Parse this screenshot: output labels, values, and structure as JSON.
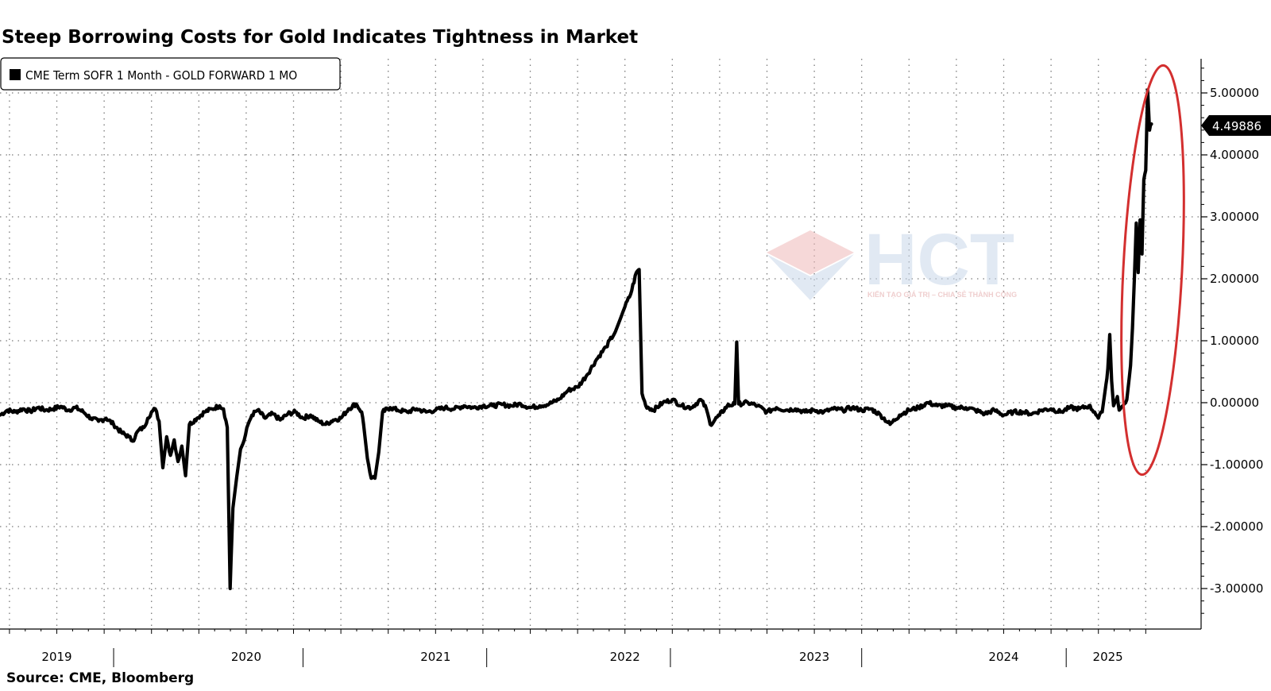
{
  "chart_data": {
    "type": "line",
    "title": "Steep Borrowing Costs for Gold Indicates Tightness in Market",
    "source": "Source: CME, Bloomberg",
    "legend": {
      "placement": "top-left",
      "entries": [
        "CME Term SOFR 1 Month - GOLD FORWARD 1 MO"
      ]
    },
    "xlabel": "",
    "ylabel": "",
    "x_ticks": [
      "2019",
      "2020",
      "2021",
      "2022",
      "2023",
      "2024",
      "2025"
    ],
    "y_ticks": [
      "5.00000",
      "4.00000",
      "3.00000",
      "2.00000",
      "1.00000",
      "0.00000",
      "-1.00000",
      "-2.00000",
      "-3.00000"
    ],
    "ylim": [
      -3.4,
      5.6
    ],
    "xlim": [
      2019.0,
      2025.25
    ],
    "grid": true,
    "last_value": "4.49886",
    "annotation": {
      "type": "ellipse",
      "color": "#d32f2f",
      "around": "early 2025 spike"
    },
    "series": [
      {
        "name": "CME Term SOFR 1 Month - GOLD FORWARD 1 MO",
        "color": "#000000",
        "points": [
          [
            2019.0,
            -0.2
          ],
          [
            2019.04,
            -0.12
          ],
          [
            2019.08,
            -0.15
          ],
          [
            2019.12,
            -0.1
          ],
          [
            2019.16,
            -0.14
          ],
          [
            2019.2,
            -0.08
          ],
          [
            2019.24,
            -0.12
          ],
          [
            2019.28,
            -0.1
          ],
          [
            2019.32,
            -0.06
          ],
          [
            2019.36,
            -0.12
          ],
          [
            2019.4,
            -0.08
          ],
          [
            2019.44,
            -0.15
          ],
          [
            2019.48,
            -0.25
          ],
          [
            2019.52,
            -0.3
          ],
          [
            2019.56,
            -0.25
          ],
          [
            2019.6,
            -0.35
          ],
          [
            2019.64,
            -0.48
          ],
          [
            2019.68,
            -0.55
          ],
          [
            2019.7,
            -0.62
          ],
          [
            2019.73,
            -0.45
          ],
          [
            2019.76,
            -0.4
          ],
          [
            2019.78,
            -0.25
          ],
          [
            2019.8,
            -0.15
          ],
          [
            2019.82,
            -0.1
          ],
          [
            2019.84,
            -0.3
          ],
          [
            2019.86,
            -1.05
          ],
          [
            2019.88,
            -0.55
          ],
          [
            2019.9,
            -0.85
          ],
          [
            2019.92,
            -0.6
          ],
          [
            2019.94,
            -0.95
          ],
          [
            2019.96,
            -0.7
          ],
          [
            2019.98,
            -1.18
          ],
          [
            2020.0,
            -0.35
          ],
          [
            2020.04,
            -0.25
          ],
          [
            2020.08,
            -0.15
          ],
          [
            2020.12,
            -0.1
          ],
          [
            2020.16,
            -0.05
          ],
          [
            2020.18,
            -0.1
          ],
          [
            2020.2,
            -0.4
          ],
          [
            2020.215,
            -3.0
          ],
          [
            2020.23,
            -1.7
          ],
          [
            2020.25,
            -1.2
          ],
          [
            2020.27,
            -0.75
          ],
          [
            2020.29,
            -0.6
          ],
          [
            2020.31,
            -0.35
          ],
          [
            2020.33,
            -0.2
          ],
          [
            2020.36,
            -0.12
          ],
          [
            2020.4,
            -0.25
          ],
          [
            2020.44,
            -0.18
          ],
          [
            2020.48,
            -0.28
          ],
          [
            2020.52,
            -0.18
          ],
          [
            2020.56,
            -0.15
          ],
          [
            2020.6,
            -0.25
          ],
          [
            2020.64,
            -0.2
          ],
          [
            2020.68,
            -0.3
          ],
          [
            2020.72,
            -0.35
          ],
          [
            2020.76,
            -0.28
          ],
          [
            2020.8,
            -0.25
          ],
          [
            2020.84,
            -0.1
          ],
          [
            2020.88,
            -0.02
          ],
          [
            2020.91,
            -0.15
          ],
          [
            2020.92,
            -0.35
          ],
          [
            2020.94,
            -0.9
          ],
          [
            2020.96,
            -1.22
          ],
          [
            2020.98,
            -1.22
          ],
          [
            2021.0,
            -0.8
          ],
          [
            2021.02,
            -0.15
          ],
          [
            2021.06,
            -0.08
          ],
          [
            2021.1,
            -0.12
          ],
          [
            2021.15,
            -0.15
          ],
          [
            2021.2,
            -0.1
          ],
          [
            2021.25,
            -0.15
          ],
          [
            2021.3,
            -0.12
          ],
          [
            2021.35,
            -0.08
          ],
          [
            2021.4,
            -0.1
          ],
          [
            2021.45,
            -0.05
          ],
          [
            2021.5,
            -0.08
          ],
          [
            2021.55,
            -0.05
          ],
          [
            2021.6,
            -0.05
          ],
          [
            2021.65,
            -0.03
          ],
          [
            2021.7,
            -0.05
          ],
          [
            2021.75,
            -0.02
          ],
          [
            2021.8,
            -0.08
          ],
          [
            2021.85,
            -0.05
          ],
          [
            2021.9,
            -0.02
          ],
          [
            2021.95,
            0.05
          ],
          [
            2022.0,
            0.2
          ],
          [
            2022.05,
            0.25
          ],
          [
            2022.1,
            0.45
          ],
          [
            2022.15,
            0.7
          ],
          [
            2022.2,
            0.9
          ],
          [
            2022.25,
            1.15
          ],
          [
            2022.3,
            1.55
          ],
          [
            2022.33,
            1.75
          ],
          [
            2022.36,
            2.1
          ],
          [
            2022.375,
            2.15
          ],
          [
            2022.39,
            0.15
          ],
          [
            2022.41,
            -0.05
          ],
          [
            2022.45,
            -0.12
          ],
          [
            2022.5,
            0.0
          ],
          [
            2022.55,
            0.05
          ],
          [
            2022.6,
            -0.05
          ],
          [
            2022.65,
            -0.08
          ],
          [
            2022.7,
            0.05
          ],
          [
            2022.73,
            -0.1
          ],
          [
            2022.75,
            -0.35
          ],
          [
            2022.8,
            -0.2
          ],
          [
            2022.84,
            -0.05
          ],
          [
            2022.88,
            -0.02
          ],
          [
            2022.89,
            0.98
          ],
          [
            2022.9,
            -0.02
          ],
          [
            2022.95,
            0.0
          ],
          [
            2023.0,
            -0.05
          ],
          [
            2023.05,
            -0.15
          ],
          [
            2023.1,
            -0.08
          ],
          [
            2023.15,
            -0.12
          ],
          [
            2023.2,
            -0.1
          ],
          [
            2023.25,
            -0.15
          ],
          [
            2023.3,
            -0.12
          ],
          [
            2023.35,
            -0.15
          ],
          [
            2023.4,
            -0.1
          ],
          [
            2023.45,
            -0.12
          ],
          [
            2023.5,
            -0.08
          ],
          [
            2023.55,
            -0.12
          ],
          [
            2023.6,
            -0.1
          ],
          [
            2023.65,
            -0.2
          ],
          [
            2023.7,
            -0.35
          ],
          [
            2023.75,
            -0.2
          ],
          [
            2023.8,
            -0.12
          ],
          [
            2023.85,
            -0.08
          ],
          [
            2023.9,
            0.0
          ],
          [
            2023.95,
            -0.05
          ],
          [
            2024.0,
            -0.05
          ],
          [
            2024.05,
            -0.08
          ],
          [
            2024.1,
            -0.08
          ],
          [
            2024.15,
            -0.12
          ],
          [
            2024.2,
            -0.18
          ],
          [
            2024.25,
            -0.12
          ],
          [
            2024.3,
            -0.2
          ],
          [
            2024.35,
            -0.15
          ],
          [
            2024.4,
            -0.15
          ],
          [
            2024.45,
            -0.18
          ],
          [
            2024.5,
            -0.12
          ],
          [
            2024.55,
            -0.1
          ],
          [
            2024.6,
            -0.15
          ],
          [
            2024.65,
            -0.08
          ],
          [
            2024.7,
            -0.1
          ],
          [
            2024.75,
            -0.05
          ],
          [
            2024.78,
            -0.15
          ],
          [
            2024.8,
            -0.25
          ],
          [
            2024.82,
            -0.15
          ],
          [
            2024.84,
            0.3
          ],
          [
            2024.85,
            0.55
          ],
          [
            2024.86,
            1.1
          ],
          [
            2024.87,
            0.35
          ],
          [
            2024.88,
            -0.05
          ],
          [
            2024.9,
            0.1
          ],
          [
            2024.91,
            -0.12
          ],
          [
            2024.93,
            -0.05
          ],
          [
            2024.95,
            0.05
          ],
          [
            2024.97,
            0.6
          ],
          [
            2024.98,
            1.2
          ],
          [
            2024.99,
            2.0
          ],
          [
            2025.0,
            2.9
          ],
          [
            2025.01,
            2.1
          ],
          [
            2025.02,
            2.95
          ],
          [
            2025.03,
            2.4
          ],
          [
            2025.04,
            3.6
          ],
          [
            2025.05,
            3.75
          ],
          [
            2025.06,
            5.05
          ],
          [
            2025.07,
            4.4
          ],
          [
            2025.08,
            4.49886
          ]
        ]
      }
    ]
  },
  "watermark": {
    "logo_text": "HCT",
    "tagline": "KIẾN TẠO GIÁ TRỊ – CHIA SẺ THÀNH CÔNG"
  },
  "colors": {
    "line": "#000000",
    "annotation": "#d32f2f",
    "watermark": "#d6e2ee",
    "grid": "#7a7a7a"
  }
}
